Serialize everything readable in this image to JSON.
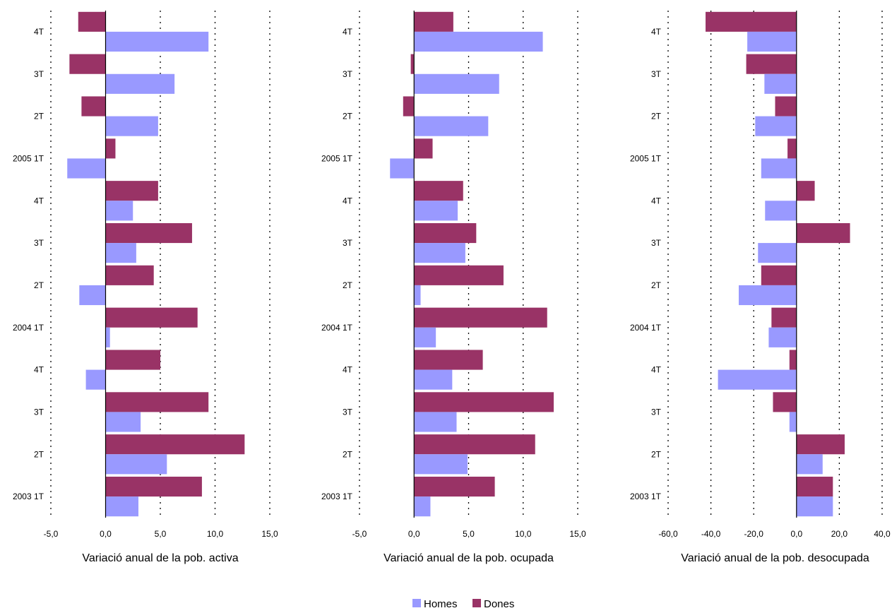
{
  "colors": {
    "homes": "#9999ff",
    "dones": "#993366",
    "axis": "#000000"
  },
  "categories": [
    "2003 1T",
    "2T",
    "3T",
    "4T",
    "2004 1T",
    "2T",
    "3T",
    "4T",
    "2005 1T",
    "2T",
    "3T",
    "4T"
  ],
  "legend": [
    {
      "name": "Homes",
      "color": "#9999ff"
    },
    {
      "name": "Dones",
      "color": "#993366"
    }
  ],
  "chart_data": [
    {
      "type": "bar",
      "orientation": "horizontal",
      "xlabel": "Variació anual de la pob. activa",
      "xlim": [
        -5,
        15
      ],
      "xticks": [
        "-5,0",
        "0,0",
        "5,0",
        "10,0",
        "15,0"
      ],
      "xtick_values": [
        -5,
        0,
        5,
        10,
        15
      ],
      "grid": "vertical dotted",
      "categories": [
        "2003 1T",
        "2T",
        "3T",
        "4T",
        "2004 1T",
        "2T",
        "3T",
        "4T",
        "2005 1T",
        "2T",
        "3T",
        "4T"
      ],
      "series": [
        {
          "name": "Homes",
          "values": [
            3.0,
            5.6,
            3.2,
            -1.8,
            0.4,
            -2.4,
            2.8,
            2.5,
            -3.5,
            4.8,
            6.3,
            9.4
          ]
        },
        {
          "name": "Dones",
          "values": [
            8.8,
            12.7,
            9.4,
            5.0,
            8.4,
            4.4,
            7.9,
            4.8,
            0.9,
            -2.2,
            -3.3,
            -2.5
          ]
        }
      ]
    },
    {
      "type": "bar",
      "orientation": "horizontal",
      "xlabel": "Variació anual de la pob. ocupada",
      "xlim": [
        -5,
        15
      ],
      "xticks": [
        "-5,0",
        "0,0",
        "5,0",
        "10,0",
        "15,0"
      ],
      "xtick_values": [
        -5,
        0,
        5,
        10,
        15
      ],
      "grid": "vertical dotted",
      "categories": [
        "2003 1T",
        "2T",
        "3T",
        "4T",
        "2004 1T",
        "2T",
        "3T",
        "4T",
        "2005 1T",
        "2T",
        "3T",
        "4T"
      ],
      "series": [
        {
          "name": "Homes",
          "values": [
            1.5,
            4.9,
            3.9,
            3.5,
            2.0,
            0.6,
            4.7,
            4.0,
            -2.2,
            6.8,
            7.8,
            11.8
          ]
        },
        {
          "name": "Dones",
          "values": [
            7.4,
            11.1,
            12.8,
            6.3,
            12.2,
            8.2,
            5.7,
            4.5,
            1.7,
            -1.0,
            -0.3,
            3.6
          ]
        }
      ]
    },
    {
      "type": "bar",
      "orientation": "horizontal",
      "xlabel": "Variació anual de la pob. desocupada",
      "xlim": [
        -60,
        40
      ],
      "xticks": [
        "-60,0",
        "-40,0",
        "-20,0",
        "0,0",
        "20,0",
        "40,0"
      ],
      "xtick_values": [
        -60,
        -40,
        -20,
        0,
        20,
        40
      ],
      "grid": "vertical dotted",
      "categories": [
        "2003 1T",
        "2T",
        "3T",
        "4T",
        "2004 1T",
        "2T",
        "3T",
        "4T",
        "2005 1T",
        "2T",
        "3T",
        "4T"
      ],
      "series": [
        {
          "name": "Homes",
          "values": [
            17.0,
            12.2,
            -3.3,
            -36.7,
            -13.0,
            -27.0,
            -18.0,
            -14.7,
            -16.5,
            -19.3,
            -15.0,
            -23.0
          ]
        },
        {
          "name": "Dones",
          "values": [
            17.0,
            22.5,
            -11.0,
            -3.3,
            -11.7,
            -16.5,
            25.0,
            8.5,
            -4.2,
            -10.0,
            -23.5,
            -42.5
          ]
        }
      ]
    }
  ]
}
